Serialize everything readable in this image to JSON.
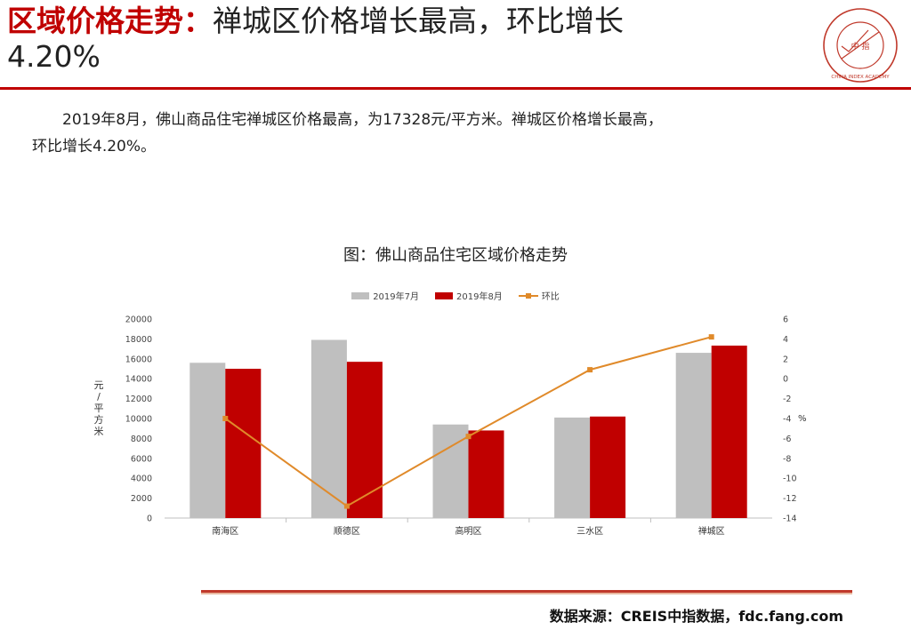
{
  "header": {
    "title_red": "区域价格走势：",
    "title_rest": "禅城区价格增长最高，环比增长",
    "title_line2": "4.20%"
  },
  "seal": {
    "icon": "china-index-academy-seal-icon",
    "text": "CHINA INDEX ACADEMY",
    "center": "中 指"
  },
  "paragraph": {
    "line1": "2019年8月，佛山商品住宅禅城区价格最高，为17328元/平方米。禅城区价格增长最高，",
    "line2": "环比增长4.20%。"
  },
  "chart_title": "图：佛山商品住宅区域价格走势",
  "colors": {
    "accent": "#c00000",
    "jul": "#bfbfbf",
    "aug": "#c00000",
    "mom": "#e08a2a",
    "rule": "#c00000"
  },
  "chart_data": {
    "type": "bar",
    "categories": [
      "南海区",
      "顺德区",
      "高明区",
      "三水区",
      "禅城区"
    ],
    "series": [
      {
        "name": "2019年7月",
        "type": "bar",
        "axis": "left",
        "values": [
          15600,
          17900,
          9400,
          10100,
          16600
        ]
      },
      {
        "name": "2019年8月",
        "type": "bar",
        "axis": "left",
        "values": [
          15000,
          15700,
          8800,
          10200,
          17328
        ]
      },
      {
        "name": "环比",
        "type": "line",
        "axis": "right",
        "values": [
          -4.0,
          -12.8,
          -5.8,
          0.9,
          4.2
        ]
      }
    ],
    "ylabel": "元/平方米",
    "y2label": "%",
    "ylim": [
      0,
      20000
    ],
    "y2lim": [
      -14,
      6
    ],
    "yticks": [
      0,
      2000,
      4000,
      6000,
      8000,
      10000,
      12000,
      14000,
      16000,
      18000,
      20000
    ],
    "y2ticks": [
      -14,
      -12,
      -10,
      -8,
      -6,
      -4,
      -2,
      0,
      2,
      4,
      6
    ],
    "legend_position": "top",
    "grid": false
  },
  "footer": {
    "source": "数据来源：CREIS中指数据，fdc.fang.com"
  }
}
